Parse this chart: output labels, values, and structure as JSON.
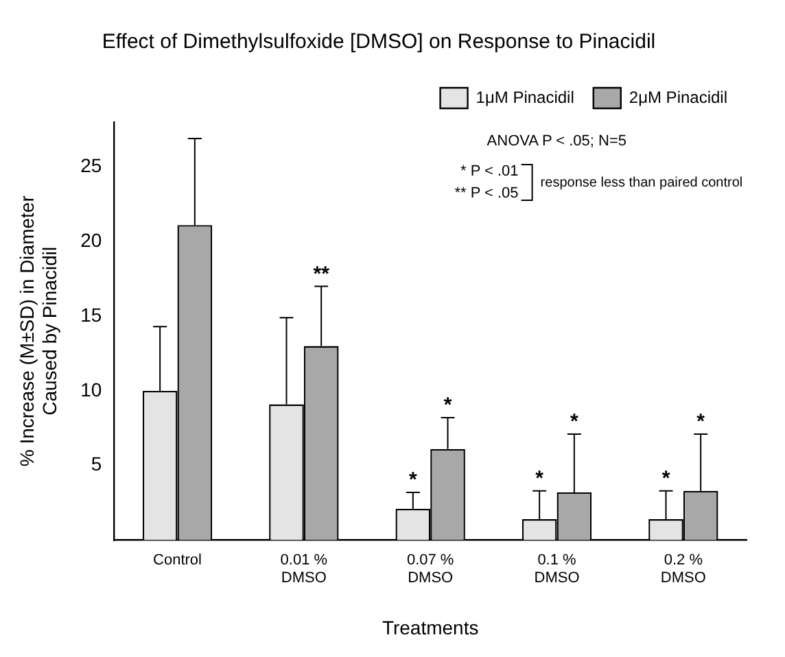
{
  "chart_data": {
    "type": "bar",
    "title": "Effect of Dimethylsulfoxide [DMSO] on Response to Pinacidil",
    "xlabel": "Treatments",
    "ylabel": "% Increase (M±SD) in Diameter\nCaused by Pinacidil",
    "categories": [
      "Control",
      "0.01 % DMSO",
      "0.07 % DMSO",
      "0.1 % DMSO",
      "0.2 % DMSO"
    ],
    "series": [
      {
        "name": "1μM Pinacidil",
        "color": "#e4e4e4",
        "values": [
          10.0,
          9.1,
          2.1,
          1.4,
          1.4
        ],
        "errors": [
          [
            10.0,
            14.3
          ],
          [
            9.1,
            14.9
          ],
          [
            2.1,
            3.2
          ],
          [
            1.4,
            3.3
          ],
          [
            1.4,
            3.3
          ]
        ]
      },
      {
        "name": "2μM Pinacidil",
        "color": "#a8a8a8",
        "values": [
          21.1,
          13.0,
          6.1,
          3.2,
          3.3
        ],
        "errors": [
          [
            21.1,
            26.9
          ],
          [
            13.0,
            17.0
          ],
          [
            6.1,
            8.2
          ],
          [
            3.2,
            7.1
          ],
          [
            3.3,
            7.1
          ]
        ]
      }
    ],
    "ylim": [
      0,
      28
    ],
    "yticks": [
      5,
      10,
      15,
      20,
      25
    ],
    "grid": false,
    "legend": "top right",
    "annotations": [
      "ANOVA P < .05; N=5",
      "* P < .01",
      "** P < .05",
      "response less than paired control",
      "**",
      "*",
      "*",
      "*",
      "*",
      "*",
      "*"
    ]
  }
}
